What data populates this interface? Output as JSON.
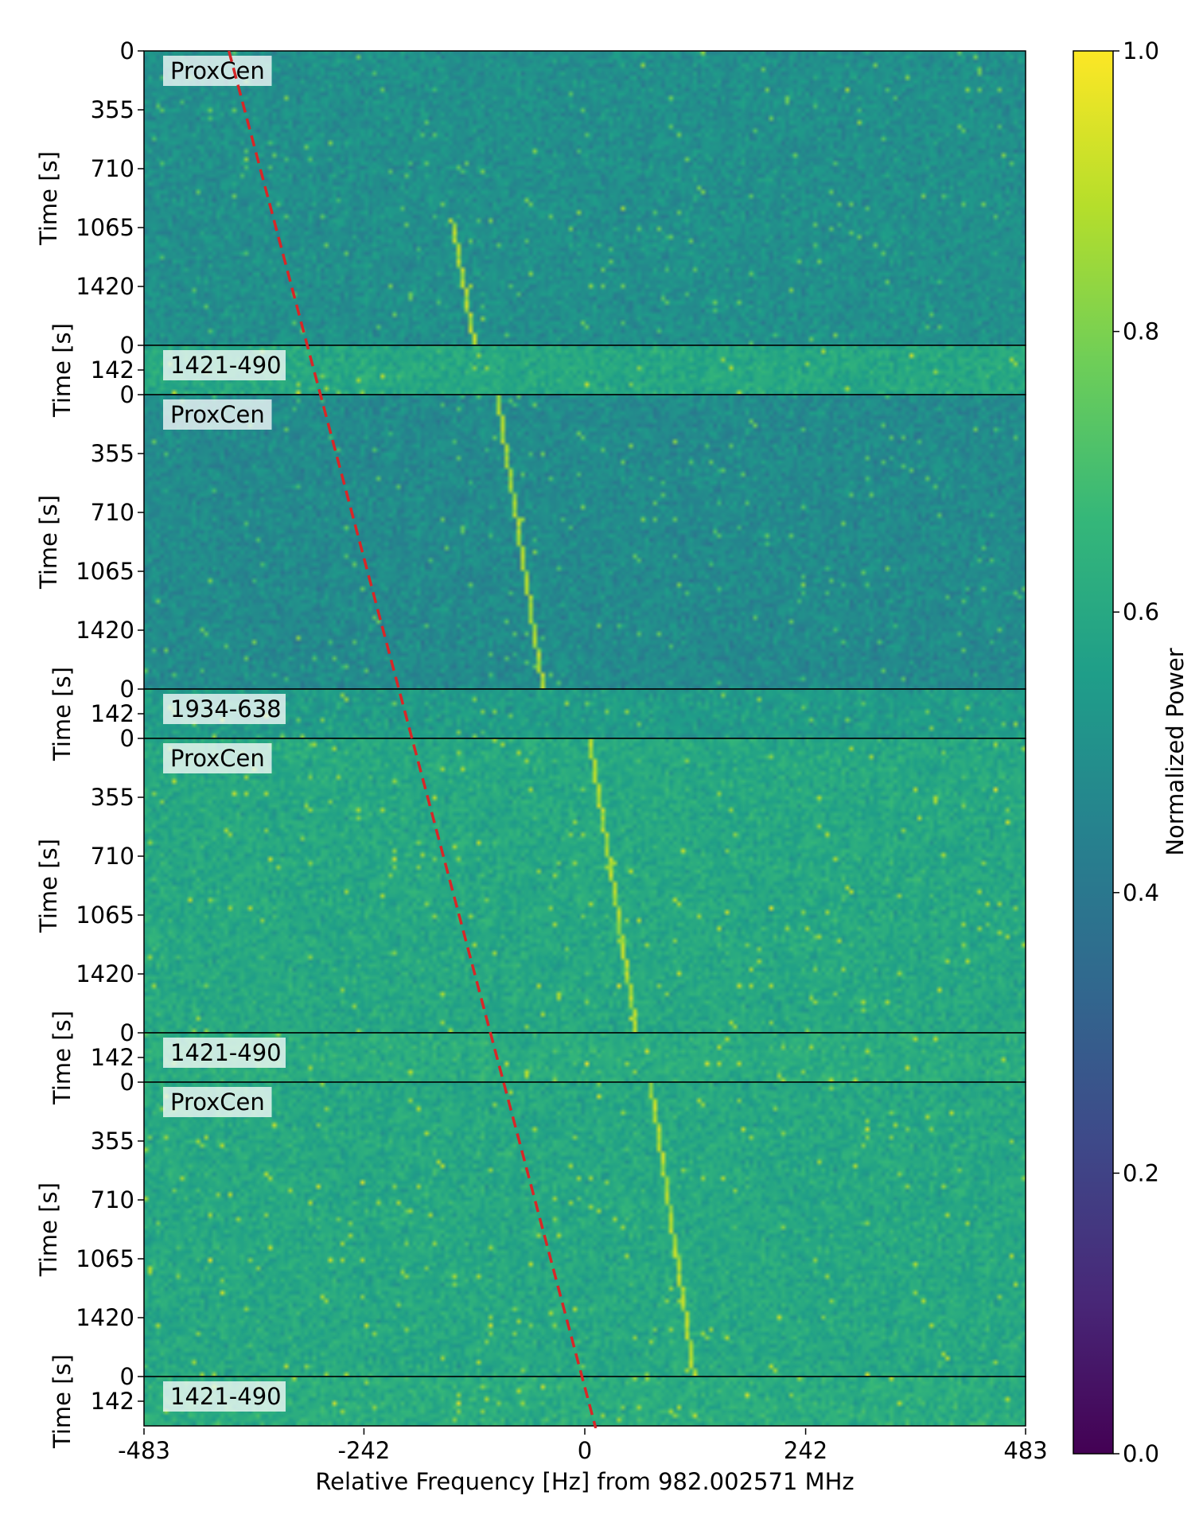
{
  "chart_data": {
    "type": "heatmap",
    "title": "",
    "xlabel": "Relative Frequency [Hz] from 982.002571 MHz",
    "x_ticks": [
      -483,
      -242,
      0,
      242,
      483
    ],
    "x_tick_labels": [
      "-483",
      "-242",
      "0",
      "242",
      "483"
    ],
    "xlim": [
      -483,
      483
    ],
    "colorbar": {
      "label": "Normalized Power",
      "range": [
        0.0,
        1.0
      ],
      "ticks": [
        0.0,
        0.2,
        0.4,
        0.6,
        0.8,
        1.0
      ],
      "tick_labels": [
        "0.0",
        "0.2",
        "0.4",
        "0.6",
        "0.8",
        "1.0"
      ],
      "colormap": "viridis",
      "colormap_stops": [
        "#440154",
        "#482878",
        "#3e4989",
        "#31688e",
        "#26828e",
        "#1f9e89",
        "#35b779",
        "#6ece58",
        "#b5de2b",
        "#fde725"
      ]
    },
    "panels": [
      {
        "label": "ProxCen",
        "ylabel": "Time [s]",
        "ylim": [
          0,
          1775
        ],
        "y_ticks": [
          0,
          355,
          710,
          1065,
          1420
        ],
        "y_tick_labels": [
          "0",
          "355",
          "710",
          "1065",
          "1420"
        ],
        "base_power": 0.5,
        "signal": {
          "x_start": -148,
          "x_end": -123,
          "y_start": 1000,
          "y_end": 1775
        }
      },
      {
        "label": "1421-490",
        "ylabel": "Time [s]",
        "ylim": [
          0,
          284
        ],
        "y_ticks": [
          0,
          142
        ],
        "y_tick_labels": [
          "0",
          "142"
        ],
        "base_power": 0.6,
        "signal": null
      },
      {
        "label": "ProxCen",
        "ylabel": "Time [s]",
        "ylim": [
          0,
          1775
        ],
        "y_ticks": [
          0,
          355,
          710,
          1065,
          1420
        ],
        "y_tick_labels": [
          "0",
          "355",
          "710",
          "1065",
          "1420"
        ],
        "base_power": 0.48,
        "signal": {
          "x_start": -98,
          "x_end": -48,
          "y_start": 0,
          "y_end": 1775
        }
      },
      {
        "label": "1934-638",
        "ylabel": "Time [s]",
        "ylim": [
          0,
          284
        ],
        "y_ticks": [
          0,
          142
        ],
        "y_tick_labels": [
          "0",
          "142"
        ],
        "base_power": 0.55,
        "signal": null
      },
      {
        "label": "ProxCen",
        "ylabel": "Time [s]",
        "ylim": [
          0,
          1775
        ],
        "y_ticks": [
          0,
          355,
          710,
          1065,
          1420
        ],
        "y_tick_labels": [
          "0",
          "355",
          "710",
          "1065",
          "1420"
        ],
        "base_power": 0.6,
        "signal": {
          "x_start": 3,
          "x_end": 55,
          "y_start": 0,
          "y_end": 1775
        }
      },
      {
        "label": "1421-490",
        "ylabel": "Time [s]",
        "ylim": [
          0,
          284
        ],
        "y_ticks": [
          0,
          142
        ],
        "y_tick_labels": [
          "0",
          "142"
        ],
        "base_power": 0.62,
        "signal": null
      },
      {
        "label": "ProxCen",
        "ylabel": "Time [s]",
        "ylim": [
          0,
          1775
        ],
        "y_ticks": [
          0,
          355,
          710,
          1065,
          1420
        ],
        "y_tick_labels": [
          "0",
          "355",
          "710",
          "1065",
          "1420"
        ],
        "base_power": 0.6,
        "signal": {
          "x_start": 70,
          "x_end": 118,
          "y_start": 0,
          "y_end": 1775
        }
      },
      {
        "label": "1421-490",
        "ylabel": "Time [s]",
        "ylim": [
          0,
          284
        ],
        "y_ticks": [
          0,
          142
        ],
        "y_tick_labels": [
          "0",
          "142"
        ],
        "base_power": 0.62,
        "signal": null
      }
    ],
    "drift_line": {
      "color": "#d62728",
      "style": "dashed",
      "x_top": -390,
      "x_bottom": 12
    }
  }
}
